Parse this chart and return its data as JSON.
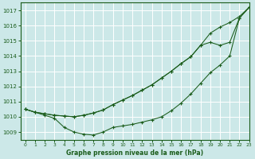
{
  "title": "Graphe pression niveau de la mer (hPa)",
  "background_color": "#cce8e8",
  "grid_color": "#ffffff",
  "line_color": "#1a5c1a",
  "xlim": [
    -0.5,
    23
  ],
  "ylim": [
    1008.5,
    1017.5
  ],
  "yticks": [
    1009,
    1010,
    1011,
    1012,
    1013,
    1014,
    1015,
    1016,
    1017
  ],
  "xticks": [
    0,
    1,
    2,
    3,
    4,
    5,
    6,
    7,
    8,
    9,
    10,
    11,
    12,
    13,
    14,
    15,
    16,
    17,
    18,
    19,
    20,
    21,
    22,
    23
  ],
  "series": [
    [
      1010.5,
      1010.3,
      1010.1,
      1009.9,
      1009.3,
      1009.0,
      1008.85,
      1008.8,
      1009.0,
      1009.3,
      1009.4,
      1009.5,
      1009.65,
      1009.8,
      1010.0,
      1010.4,
      1010.9,
      1011.5,
      1012.2,
      1012.9,
      1013.4,
      1014.0,
      1016.5,
      1017.2
    ],
    [
      1010.5,
      1010.3,
      1010.2,
      1010.1,
      1010.05,
      1010.0,
      1010.1,
      1010.25,
      1010.45,
      1010.8,
      1011.1,
      1011.4,
      1011.75,
      1012.1,
      1012.55,
      1013.0,
      1013.5,
      1013.95,
      1014.7,
      1014.9,
      1014.7,
      1014.9,
      1016.5,
      1017.2
    ],
    [
      1010.5,
      1010.3,
      1010.2,
      1010.1,
      1010.05,
      1010.0,
      1010.1,
      1010.25,
      1010.45,
      1010.8,
      1011.1,
      1011.4,
      1011.75,
      1012.1,
      1012.55,
      1013.0,
      1013.5,
      1013.95,
      1014.7,
      1015.5,
      1015.9,
      1016.2,
      1016.6,
      1017.2
    ]
  ]
}
